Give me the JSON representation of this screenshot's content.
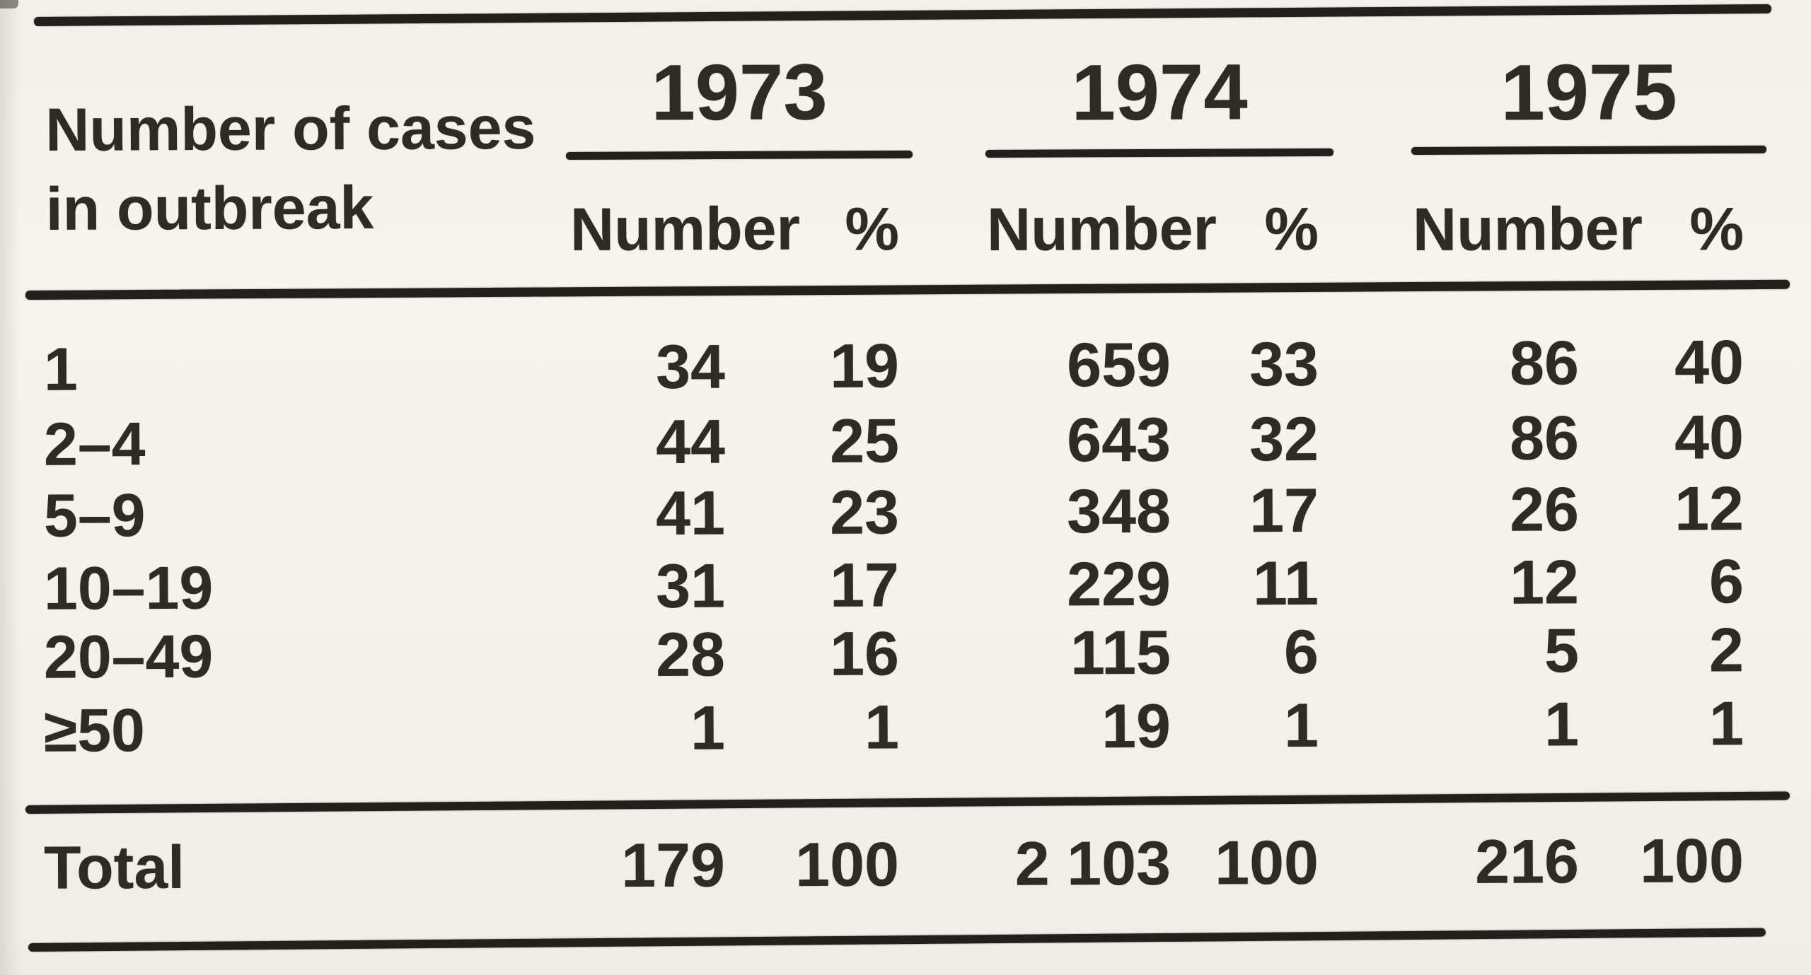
{
  "page": {
    "paper_color": "#f3f1ea",
    "ink_color": "#2e2b27",
    "rule_color": "#22201d"
  },
  "table": {
    "row_header_line1": "Number of cases",
    "row_header_line2": "in outbreak",
    "groups": [
      {
        "year": "1973",
        "number_label": "Number",
        "percent_label": "%"
      },
      {
        "year": "1974",
        "number_label": "Number",
        "percent_label": "%"
      },
      {
        "year": "1975",
        "number_label": "Number",
        "percent_label": "%"
      }
    ],
    "rows": [
      {
        "label": "1",
        "cells": [
          "34",
          "19",
          "659",
          "33",
          "86",
          "40"
        ]
      },
      {
        "label": "2–4",
        "cells": [
          "44",
          "25",
          "643",
          "32",
          "86",
          "40"
        ]
      },
      {
        "label": "5–9",
        "cells": [
          "41",
          "23",
          "348",
          "17",
          "26",
          "12"
        ]
      },
      {
        "label": "10–19",
        "cells": [
          "31",
          "17",
          "229",
          "11",
          "12",
          "6"
        ]
      },
      {
        "label": "20–49",
        "cells": [
          "28",
          "16",
          "115",
          "6",
          "5",
          "2"
        ]
      },
      {
        "label": "≥50",
        "cells": [
          "1",
          "1",
          "19",
          "1",
          "1",
          "1"
        ]
      }
    ],
    "total": {
      "label": "Total",
      "cells": [
        "179",
        "100",
        "2 103",
        "100",
        "216",
        "100"
      ]
    }
  },
  "chart_data": {
    "type": "table",
    "columns": [
      "Number of cases in outbreak",
      "1973 Number",
      "1973 %",
      "1974 Number",
      "1974 %",
      "1975 Number",
      "1975 %"
    ],
    "rows": [
      [
        "1",
        34,
        19,
        659,
        33,
        86,
        40
      ],
      [
        "2–4",
        44,
        25,
        643,
        32,
        86,
        40
      ],
      [
        "5–9",
        41,
        23,
        348,
        17,
        26,
        12
      ],
      [
        "10–19",
        31,
        17,
        229,
        11,
        12,
        6
      ],
      [
        "20–49",
        28,
        16,
        115,
        6,
        5,
        2
      ],
      [
        "≥50",
        1,
        1,
        19,
        1,
        1,
        1
      ],
      [
        "Total",
        179,
        100,
        2103,
        100,
        216,
        100
      ]
    ]
  }
}
